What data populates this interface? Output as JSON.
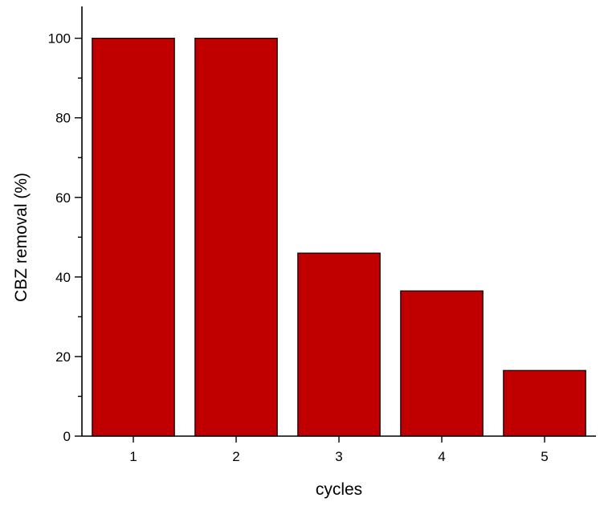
{
  "chart_data": {
    "type": "bar",
    "title": "",
    "xlabel": "cycles",
    "ylabel": "CBZ removal (%)",
    "categories": [
      "1",
      "2",
      "3",
      "4",
      "5"
    ],
    "values": [
      100,
      100,
      46,
      36.5,
      16.5
    ],
    "ylim": [
      0,
      108
    ],
    "yticks": [
      0,
      20,
      40,
      60,
      80,
      100
    ],
    "y_minor_step": 10,
    "grid": false,
    "legend": "none",
    "bar_color": "#C00000",
    "bar_edge_color": "#000000"
  }
}
